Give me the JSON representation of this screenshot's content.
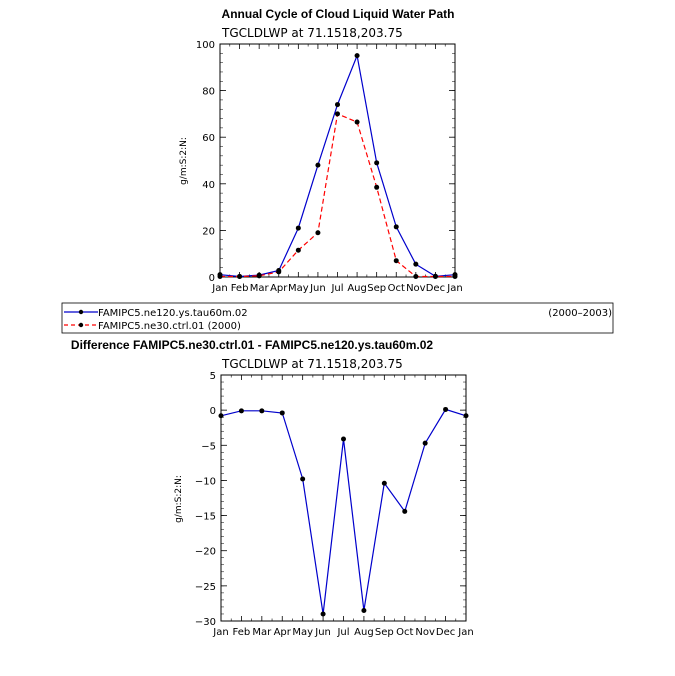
{
  "months": [
    "Jan",
    "Feb",
    "Mar",
    "Apr",
    "May",
    "Jun",
    "Jul",
    "Aug",
    "Sep",
    "Oct",
    "Nov",
    "Dec",
    "Jan"
  ],
  "chart_data": [
    {
      "type": "line",
      "title": "Annual Cycle of Cloud Liquid Water Path",
      "subtitle": "TGCLDLWP  at  71.1518,203.75",
      "ylabel": "g/m:S:2:N:",
      "categories": [
        "Jan",
        "Feb",
        "Mar",
        "Apr",
        "May",
        "Jun",
        "Jul",
        "Aug",
        "Sep",
        "Oct",
        "Nov",
        "Dec",
        "Jan"
      ],
      "ylim": [
        0,
        100
      ],
      "yticks": [
        0,
        20,
        40,
        60,
        80,
        100
      ],
      "series": [
        {
          "name": "FAMIPC5.ne120.ys.tau60m.02",
          "period": "(2000–2003)",
          "color": "#0000cc",
          "dash": "solid",
          "values": [
            1,
            0.2,
            0.8,
            2.8,
            21,
            48,
            74,
            95,
            49,
            21.5,
            5.5,
            0.3,
            1
          ]
        },
        {
          "name": "FAMIPC5.ne30.ctrl.01  (2000)",
          "period": "",
          "color": "#ff0000",
          "dash": "dashed",
          "values": [
            0.2,
            0.2,
            0.5,
            2.2,
            11.5,
            19,
            70,
            66.5,
            38.5,
            7,
            0.2,
            0.2,
            0.2
          ]
        }
      ]
    },
    {
      "type": "line",
      "title": "Difference FAMIPC5.ne30.ctrl.01 - FAMIPC5.ne120.ys.tau60m.02",
      "subtitle": "TGCLDLWP  at  71.1518,203.75",
      "ylabel": "g/m:S:2:N:",
      "categories": [
        "Jan",
        "Feb",
        "Mar",
        "Apr",
        "May",
        "Jun",
        "Jul",
        "Aug",
        "Sep",
        "Oct",
        "Nov",
        "Dec",
        "Jan"
      ],
      "ylim": [
        -30,
        5
      ],
      "yticks": [
        5,
        0,
        -5,
        -10,
        -15,
        -20,
        -25,
        -30
      ],
      "series": [
        {
          "name": "",
          "color": "#0000cc",
          "dash": "solid",
          "values": [
            -0.8,
            -0.1,
            -0.1,
            -0.4,
            -9.8,
            -29,
            -4.1,
            -28.5,
            -10.4,
            -14.4,
            -4.7,
            0.1,
            -0.8
          ]
        }
      ]
    }
  ]
}
